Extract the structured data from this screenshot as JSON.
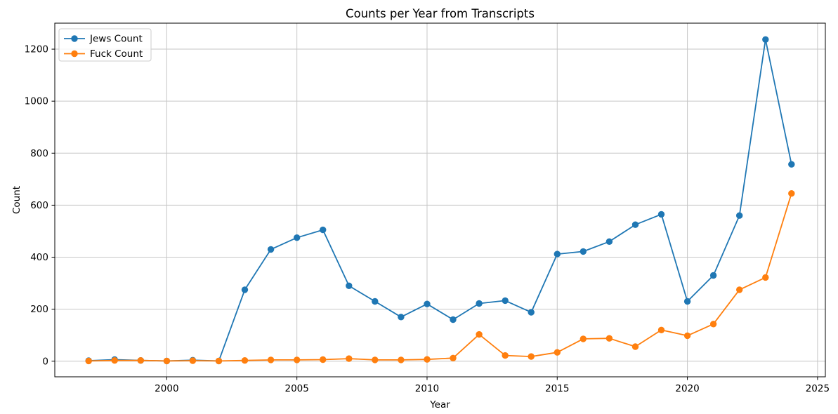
{
  "chart_data": {
    "type": "line",
    "title": "Counts per Year from Transcripts",
    "xlabel": "Year",
    "ylabel": "Count",
    "x": [
      1997,
      1998,
      1999,
      2000,
      2001,
      2002,
      2003,
      2004,
      2005,
      2006,
      2007,
      2008,
      2009,
      2010,
      2011,
      2012,
      2013,
      2014,
      2015,
      2016,
      2017,
      2018,
      2019,
      2020,
      2021,
      2022,
      2023,
      2024
    ],
    "series": [
      {
        "name": "Jews Count",
        "color": "#1f77b4",
        "values": [
          2,
          6,
          3,
          1,
          4,
          1,
          275,
          430,
          475,
          505,
          290,
          230,
          170,
          220,
          160,
          222,
          233,
          188,
          412,
          422,
          460,
          525,
          565,
          230,
          330,
          560,
          1237,
          757
        ]
      },
      {
        "name": "Fuck Count",
        "color": "#ff7f0e",
        "values": [
          1,
          3,
          3,
          1,
          2,
          1,
          3,
          5,
          5,
          6,
          10,
          5,
          5,
          7,
          12,
          103,
          22,
          18,
          34,
          86,
          88,
          56,
          120,
          98,
          143,
          275,
          322,
          645
        ]
      }
    ],
    "xticks": [
      2000,
      2005,
      2010,
      2015,
      2020,
      2025
    ],
    "yticks": [
      0,
      200,
      400,
      600,
      800,
      1000,
      1200
    ],
    "xlim": [
      1995.7,
      2025.3
    ],
    "ylim": [
      -60,
      1300
    ],
    "grid": true,
    "legend_position": "upper left",
    "grid_color": "#c6c6c6",
    "spine_color": "#000000",
    "background": "#ffffff"
  }
}
